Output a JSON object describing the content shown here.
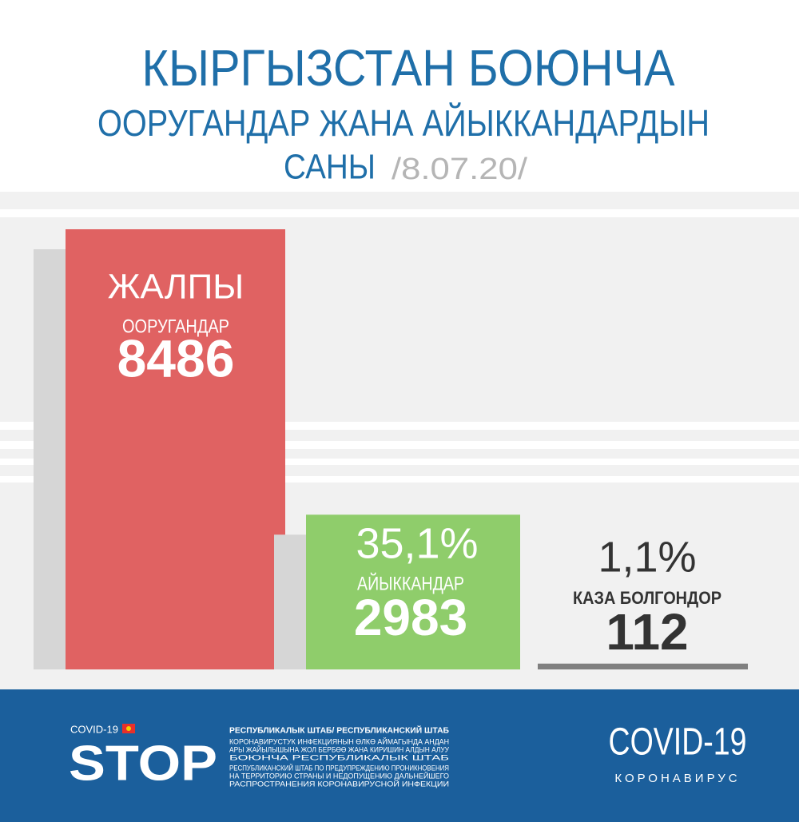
{
  "chart_data": {
    "type": "bar",
    "title": "КЫРГЫЗСТАН БОЮНЧА",
    "subtitle": "ООРУГАНДАР ЖАНА АЙЫККАНДАРДЫН",
    "subtitle2": "САНЫ",
    "date": "/8.07.20/",
    "total_heading": "ЖАЛПЫ",
    "categories": [
      "ООРУГАНДАР",
      "АЙЫККАНДАР",
      "КАЗА БОЛГОНДОР"
    ],
    "values": [
      8486,
      2983,
      112
    ],
    "shares": [
      null,
      35.1,
      1.1
    ],
    "share_labels": [
      null,
      "35,1%",
      "1,1%"
    ],
    "colors": [
      "#e06262",
      "#8fcd6b",
      "#808080"
    ]
  },
  "footer": {
    "logo_small": "COVID-19",
    "logo": "STOP",
    "org_title": "РЕСПУБЛИКАЛЫК ШТАБ/ РЕСПУБЛИКАНСКИЙ ШТАБ",
    "org_lines": [
      "КОРОНАВИРУСТУК ИНФЕКЦИЯНЫН ӨЛКӨ АЙМАГЫНДА АНДАН",
      "АРЫ ЖАЙЫЛЫШЫНА ЖОЛ БЕРБӨӨ ЖАНА КИРИШИН АЛДЫН АЛУУ",
      "БОЮНЧА РЕСПУБЛИКАЛЫК ШТАБ",
      "РЕСПУБЛИКАНСКИЙ ШТАБ ПО ПРЕДУПРЕЖДЕНИЮ ПРОНИКНОВЕНИЯ",
      "НА ТЕРРИТОРИЮ СТРАНЫ И НЕДОПУЩЕНИЮ ДАЛЬНЕЙШЕГО",
      "РАСПРОСТРАНЕНИЯ КОРОНАВИРУСНОЙ ИНФЕКЦИИ"
    ],
    "brand": "COVID-19",
    "brand_sub": "КОРОНАВИРУС"
  }
}
